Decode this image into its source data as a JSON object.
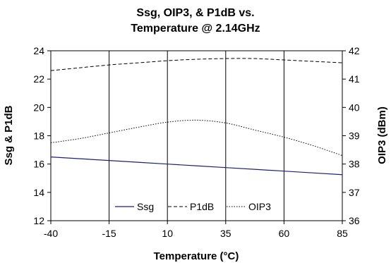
{
  "chart_data": {
    "type": "line",
    "title": [
      "Ssg, OIP3, & P1dB vs.",
      "Temperature @ 2.14GHz"
    ],
    "xlabel": "Temperature (°C)",
    "ylabel_left": "Ssg & P1dB",
    "ylabel_right": "OIP3 (dBm)",
    "x_ticks": [
      "-40",
      "-15",
      "10",
      "35",
      "60",
      "85"
    ],
    "y_left_ticks": [
      "12",
      "14",
      "16",
      "18",
      "20",
      "22",
      "24"
    ],
    "y_right_ticks": [
      "36",
      "37",
      "38",
      "39",
      "40",
      "41",
      "42"
    ],
    "xlim": [
      -40,
      85
    ],
    "ylim_left": [
      12,
      24
    ],
    "ylim_right": [
      36,
      42
    ],
    "grid": "vertical",
    "legend_position": "bottom-center",
    "series": [
      {
        "name": "Ssg",
        "axis": "left",
        "color": "#1f1f7a",
        "style": "solid",
        "x": [
          -40,
          -15,
          10,
          35,
          60,
          85
        ],
        "y": [
          16.5,
          16.25,
          16.0,
          15.75,
          15.5,
          15.25
        ]
      },
      {
        "name": "P1dB",
        "axis": "left",
        "color": "#000000",
        "style": "dashed",
        "x": [
          -40,
          -27.5,
          -15,
          -2.5,
          10,
          22.5,
          35,
          47.5,
          60,
          72.5,
          85
        ],
        "y": [
          22.6,
          22.8,
          23.0,
          23.15,
          23.3,
          23.4,
          23.45,
          23.45,
          23.35,
          23.25,
          23.15
        ]
      },
      {
        "name": "OIP3",
        "axis": "right",
        "color": "#000000",
        "style": "dotted",
        "x": [
          -40,
          -27.5,
          -15,
          -2.5,
          10,
          22.5,
          35,
          47.5,
          60,
          72.5,
          85
        ],
        "y": [
          38.75,
          38.9,
          39.1,
          39.3,
          39.48,
          39.55,
          39.45,
          39.2,
          38.95,
          38.65,
          38.3
        ]
      }
    ]
  }
}
